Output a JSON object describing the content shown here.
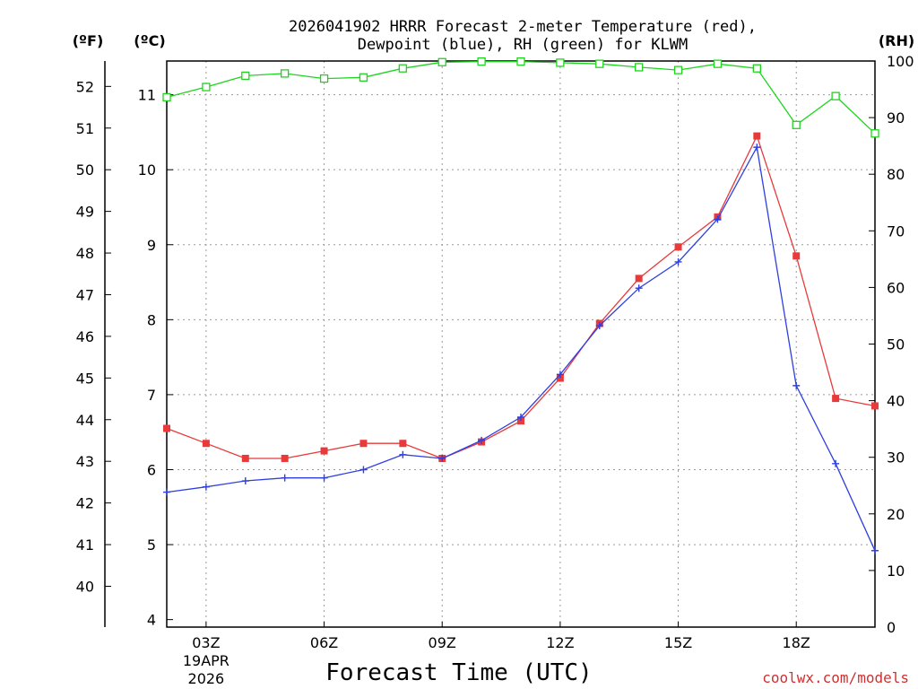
{
  "chart_data": {
    "type": "line",
    "title_line1": "2026041902 HRRR Forecast 2-meter Temperature (red),",
    "title_line2": "Dewpoint (blue), RH (green) for KLWM",
    "xlabel": "Forecast Time (UTC)",
    "credit": "coolwx.com/models",
    "units": {
      "fahrenheit": "(ºF)",
      "celsius": "(ºC)",
      "rh": "(RH)"
    },
    "x": [
      2,
      3,
      4,
      5,
      6,
      7,
      8,
      9,
      10,
      11,
      12,
      13,
      14,
      15,
      16,
      17,
      18,
      19,
      20
    ],
    "xlim": [
      2,
      20
    ],
    "x_ticks": [
      {
        "x": 3,
        "label": "03Z",
        "sub1": "19APR",
        "sub2": "2026"
      },
      {
        "x": 6,
        "label": "06Z"
      },
      {
        "x": 9,
        "label": "09Z"
      },
      {
        "x": 12,
        "label": "12Z"
      },
      {
        "x": 15,
        "label": "15Z"
      },
      {
        "x": 18,
        "label": "18Z"
      }
    ],
    "celsius_axis": {
      "ylim": [
        3.9,
        11.45
      ],
      "ticks": [
        4,
        5,
        6,
        7,
        8,
        9,
        10,
        11
      ]
    },
    "fahrenheit_axis": {
      "ylim": [
        39.02,
        52.61
      ],
      "ticks": [
        40,
        41,
        42,
        43,
        44,
        45,
        46,
        47,
        48,
        49,
        50,
        51,
        52
      ]
    },
    "rh_axis": {
      "ylim": [
        0,
        100
      ],
      "ticks": [
        0,
        10,
        20,
        30,
        40,
        50,
        60,
        70,
        80,
        90,
        100
      ]
    },
    "series": [
      {
        "name": "Temperature",
        "axis": "celsius",
        "color": "#e83a3a",
        "marker": "filled-square",
        "values": [
          6.55,
          6.35,
          6.15,
          6.15,
          6.25,
          6.35,
          6.35,
          6.15,
          6.37,
          6.65,
          7.22,
          7.95,
          8.55,
          8.97,
          9.37,
          10.45,
          8.85,
          6.95,
          6.85
        ]
      },
      {
        "name": "Dewpoint",
        "axis": "celsius",
        "color": "#2f3fe0",
        "marker": "plus",
        "values": [
          5.7,
          5.77,
          5.85,
          5.89,
          5.89,
          6.0,
          6.2,
          6.15,
          6.39,
          6.7,
          7.27,
          7.92,
          8.42,
          8.77,
          9.34,
          10.3,
          7.12,
          6.08,
          4.92
        ]
      },
      {
        "name": "RH",
        "axis": "rh",
        "color": "#1fd41f",
        "marker": "open-square",
        "values": [
          93.6,
          95.4,
          97.4,
          97.8,
          96.9,
          97.1,
          98.7,
          99.8,
          99.9,
          99.9,
          99.7,
          99.5,
          98.9,
          98.4,
          99.5,
          98.7,
          88.7,
          93.8,
          87.2
        ]
      }
    ]
  }
}
